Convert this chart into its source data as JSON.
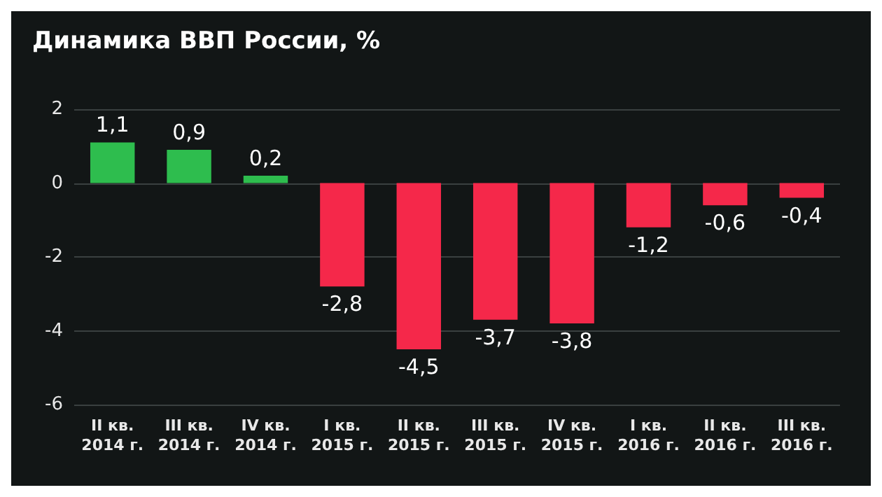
{
  "chart_data": {
    "type": "bar",
    "title": "Динамика ВВП России, %",
    "categories": [
      "II кв.\n2014 г.",
      "III кв.\n2014 г.",
      "IV кв.\n2014 г.",
      "I кв.\n2015 г.",
      "II кв.\n2015 г.",
      "III кв.\n2015 г.",
      "IV кв.\n2015 г.",
      "I кв.\n2016 г.",
      "II кв.\n2016 г.",
      "III кв.\n2016 г."
    ],
    "values": [
      1.1,
      0.9,
      0.2,
      -2.8,
      -4.5,
      -3.7,
      -3.8,
      -1.2,
      -0.6,
      -0.4
    ],
    "colors": [
      "#2ebd4e",
      "#2ebd4e",
      "#2ebd4e",
      "#f5284a",
      "#f5284a",
      "#f5284a",
      "#f5284a",
      "#f5284a",
      "#f5284a",
      "#f5284a"
    ],
    "value_labels": [
      "1,1",
      "0,9",
      "0,2",
      "-2,8",
      "-4,5",
      "-3,7",
      "-3,8",
      "-1,2",
      "-0,6",
      "-0,4"
    ],
    "ylim": [
      -6,
      2
    ],
    "yticks": [
      -6,
      -4,
      -2,
      0,
      2
    ],
    "grid": "y"
  }
}
